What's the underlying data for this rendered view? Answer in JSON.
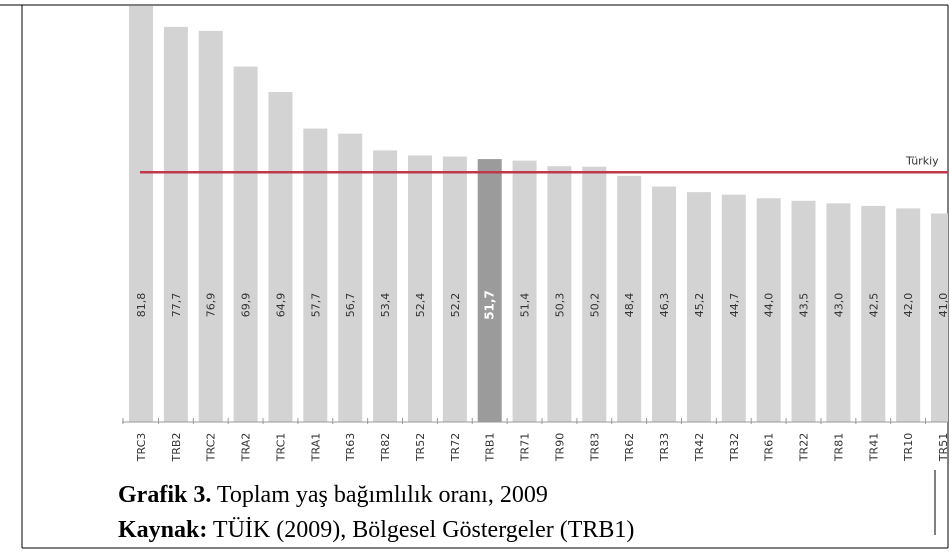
{
  "chart_data": {
    "type": "bar",
    "categories": [
      "TRC3",
      "TRB2",
      "TRC2",
      "TRA2",
      "TRC1",
      "TRA1",
      "TR63",
      "TR82",
      "TR52",
      "TR72",
      "TRB1",
      "TR71",
      "TR90",
      "TR83",
      "TR62",
      "TR33",
      "TR42",
      "TR32",
      "TR61",
      "TR22",
      "TR81",
      "TR41",
      "TR10",
      "TR51"
    ],
    "values": [
      81.8,
      77.7,
      76.9,
      69.9,
      64.9,
      57.7,
      56.7,
      53.4,
      52.4,
      52.2,
      51.7,
      51.4,
      50.3,
      50.2,
      48.4,
      46.3,
      45.2,
      44.7,
      44.0,
      43.5,
      43.0,
      42.5,
      42.0,
      41.0
    ],
    "value_labels": [
      "81,8",
      "77,7",
      "76,9",
      "69,9",
      "64,9",
      "57,7",
      "56,7",
      "53,4",
      "52,4",
      "52,2",
      "51,7",
      "51,4",
      "50,3",
      "50,2",
      "48,4",
      "46,3",
      "45,2",
      "44,7",
      "44,0",
      "43,5",
      "43,0",
      "42,5",
      "42,0",
      "41,0"
    ],
    "colors": [
      "#d3d3d3",
      "#d3d3d3",
      "#d3d3d3",
      "#d3d3d3",
      "#d3d3d3",
      "#d3d3d3",
      "#d3d3d3",
      "#d3d3d3",
      "#d3d3d3",
      "#d3d3d3",
      "#9b9b9b",
      "#d3d3d3",
      "#d3d3d3",
      "#d3d3d3",
      "#d3d3d3",
      "#d3d3d3",
      "#d3d3d3",
      "#d3d3d3",
      "#d3d3d3",
      "#d3d3d3",
      "#d3d3d3",
      "#d3d3d3",
      "#d3d3d3",
      "#d3d3d3"
    ],
    "ylim": [
      0,
      82
    ],
    "reference_line": {
      "label": "Türkiy",
      "value": 49.1,
      "color": "#c0394b"
    }
  },
  "caption": {
    "label": "Grafik 3.",
    "text": " Toplam yaş bağımlılık oranı, 2009"
  },
  "source": {
    "label": "Kaynak:",
    "text": " TÜİK (2009), Bölgesel Göstergeler (TRB1)"
  }
}
